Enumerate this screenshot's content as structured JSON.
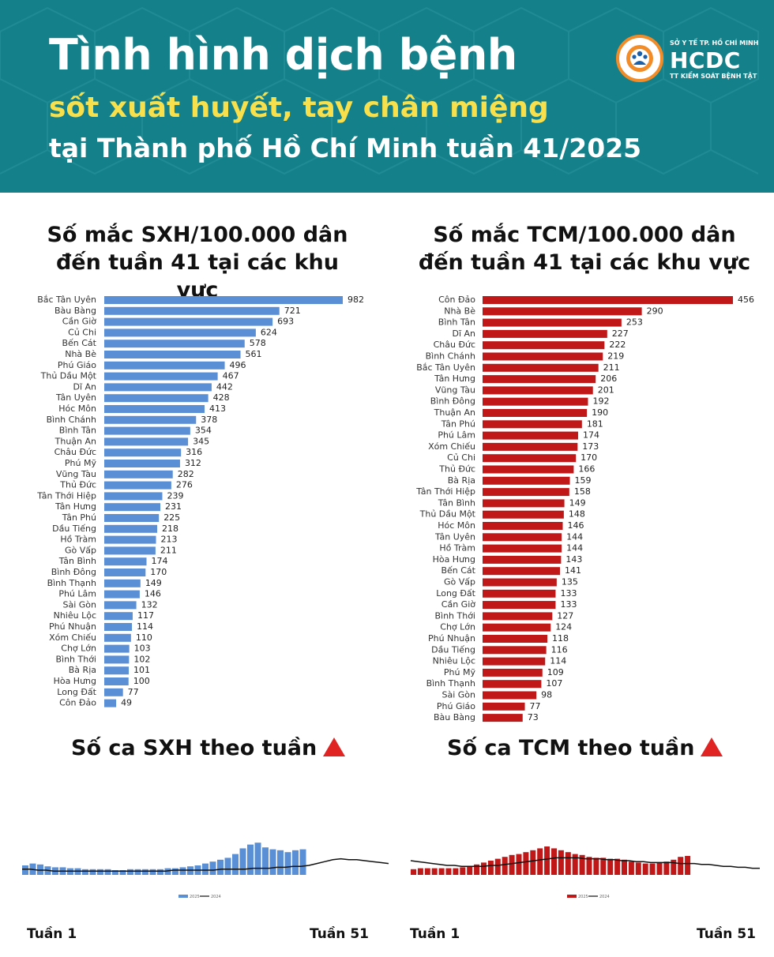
{
  "header": {
    "line1": "Tình hình dịch bệnh",
    "line2": "sốt xuất huyết, tay chân miệng",
    "line3": "tại Thành phố Hồ Chí Minh tuần 41/2025",
    "logo_top": "SỞ Y TẾ TP. HỒ CHÍ MINH",
    "logo_main": "HCDC",
    "logo_bottom": "TT KIỂM SOÁT BỆNH TẬT"
  },
  "colors": {
    "sxh": "#5a8fd6",
    "tcm": "#c01818",
    "header_bg": "#13808a",
    "header_accent": "#f7e04b",
    "line2024": "#111111"
  },
  "titles": {
    "sxh_rate": [
      "Số mắc SXH/100.000 dân",
      "đến tuần 41 tại các khu vực"
    ],
    "tcm_rate": [
      "Số mắc TCM/100.000 dân",
      "đến tuần 41 tại các khu vực"
    ],
    "sxh_week": "Số ca SXH theo tuần",
    "tcm_week": "Số ca TCM theo tuần"
  },
  "axis_labels": {
    "start": "Tuần 1",
    "end": "Tuần 51"
  },
  "chart_data": [
    {
      "type": "bar",
      "orientation": "horizontal",
      "title": "Số mắc SXH/100.000 dân đến tuần 41 tại các khu vực",
      "categories": [
        "Bắc Tân Uyên",
        "Bàu Bàng",
        "Cần Giờ",
        "Củ Chi",
        "Bến Cát",
        "Nhà Bè",
        "Phú Giáo",
        "Thủ Dầu Một",
        "Dĩ An",
        "Tân Uyên",
        "Hóc Môn",
        "Bình Chánh",
        "Bình Tân",
        "Thuận An",
        "Châu Đức",
        "Phú Mỹ",
        "Vũng Tàu",
        "Thủ Đức",
        "Tân Thới Hiệp",
        "Tân Hưng",
        "Tân Phú",
        "Dầu Tiếng",
        "Hồ Tràm",
        "Gò Vấp",
        "Tân Bình",
        "Bình Đông",
        "Bình Thạnh",
        "Phú Lâm",
        "Sài Gòn",
        "Nhiêu Lộc",
        "Phú Nhuận",
        "Xóm Chiếu",
        "Chợ Lớn",
        "Bình Thới",
        "Bà Rịa",
        "Hòa Hưng",
        "Long Đất",
        "Côn Đảo"
      ],
      "values": [
        982,
        721,
        693,
        624,
        578,
        561,
        496,
        467,
        442,
        428,
        413,
        378,
        354,
        345,
        316,
        312,
        282,
        276,
        239,
        231,
        225,
        218,
        213,
        211,
        174,
        170,
        149,
        146,
        132,
        117,
        114,
        110,
        103,
        102,
        101,
        100,
        77,
        49
      ],
      "xlim": [
        0,
        982
      ]
    },
    {
      "type": "bar",
      "orientation": "horizontal",
      "title": "Số mắc TCM/100.000 dân đến tuần 41 tại các khu vực",
      "categories": [
        "Côn Đảo",
        "Nhà Bè",
        "Bình Tân",
        "Dĩ An",
        "Châu Đức",
        "Bình Chánh",
        "Bắc Tân Uyên",
        "Tân Hưng",
        "Vũng Tàu",
        "Bình Đông",
        "Thuận An",
        "Tân Phú",
        "Phú Lâm",
        "Xóm Chiếu",
        "Củ Chi",
        "Thủ Đức",
        "Bà Rịa",
        "Tân Thới Hiệp",
        "Tân Bình",
        "Thủ Dầu Một",
        "Hóc Môn",
        "Tân Uyên",
        "Hồ Tràm",
        "Hòa Hưng",
        "Bến Cát",
        "Gò Vấp",
        "Long Đất",
        "Cần Giờ",
        "Bình Thới",
        "Chợ Lớn",
        "Phú Nhuận",
        "Dầu Tiếng",
        "Nhiêu Lộc",
        "Phú Mỹ",
        "Bình Thạnh",
        "Sài Gòn",
        "Phú Giáo",
        "Bàu Bàng"
      ],
      "values": [
        456,
        290,
        253,
        227,
        222,
        219,
        211,
        206,
        201,
        192,
        190,
        181,
        174,
        173,
        170,
        166,
        159,
        158,
        149,
        148,
        146,
        144,
        144,
        143,
        141,
        135,
        133,
        133,
        127,
        124,
        118,
        116,
        114,
        109,
        107,
        98,
        77,
        73
      ],
      "xlim": [
        0,
        456
      ]
    },
    {
      "type": "bar",
      "title": "Số ca SXH theo tuần",
      "x_range": [
        "Tuần 1",
        "Tuần 51"
      ],
      "series": [
        {
          "name": "2025",
          "type": "bar",
          "values": [
            10,
            12,
            11,
            9,
            8,
            8,
            7,
            7,
            6,
            6,
            6,
            6,
            5,
            5,
            6,
            6,
            6,
            6,
            6,
            7,
            7,
            8,
            9,
            10,
            12,
            14,
            16,
            18,
            22,
            28,
            32,
            34,
            29,
            27,
            26,
            24,
            26,
            27
          ]
        },
        {
          "name": "2024",
          "type": "line",
          "values": [
            6,
            6,
            5,
            5,
            4,
            4,
            4,
            4,
            4,
            4,
            4,
            4,
            4,
            4,
            4,
            4,
            4,
            4,
            4,
            5,
            5,
            5,
            5,
            5,
            5,
            6,
            6,
            6,
            6,
            7,
            7,
            7,
            8,
            8,
            9,
            9,
            10,
            12,
            14,
            16,
            17,
            16,
            16,
            15,
            14,
            13,
            12
          ]
        }
      ]
    },
    {
      "type": "bar",
      "title": "Số ca TCM theo tuần",
      "x_range": [
        "Tuần 1",
        "Tuần 51"
      ],
      "series": [
        {
          "name": "2025",
          "type": "bar",
          "values": [
            6,
            7,
            7,
            7,
            7,
            7,
            7,
            8,
            9,
            11,
            13,
            15,
            17,
            19,
            21,
            22,
            24,
            26,
            28,
            30,
            28,
            26,
            24,
            22,
            21,
            19,
            18,
            18,
            17,
            17,
            16,
            14,
            13,
            12,
            12,
            13,
            14,
            16,
            19,
            20
          ]
        },
        {
          "name": "2024",
          "type": "line",
          "values": [
            15,
            14,
            13,
            12,
            11,
            10,
            10,
            9,
            9,
            9,
            9,
            10,
            10,
            11,
            12,
            13,
            14,
            15,
            16,
            17,
            18,
            18,
            18,
            18,
            17,
            17,
            17,
            16,
            16,
            15,
            15,
            14,
            14,
            13,
            13,
            13,
            13,
            12,
            12,
            12,
            11,
            11,
            10,
            9,
            9,
            8,
            8,
            7,
            7
          ]
        }
      ]
    }
  ]
}
